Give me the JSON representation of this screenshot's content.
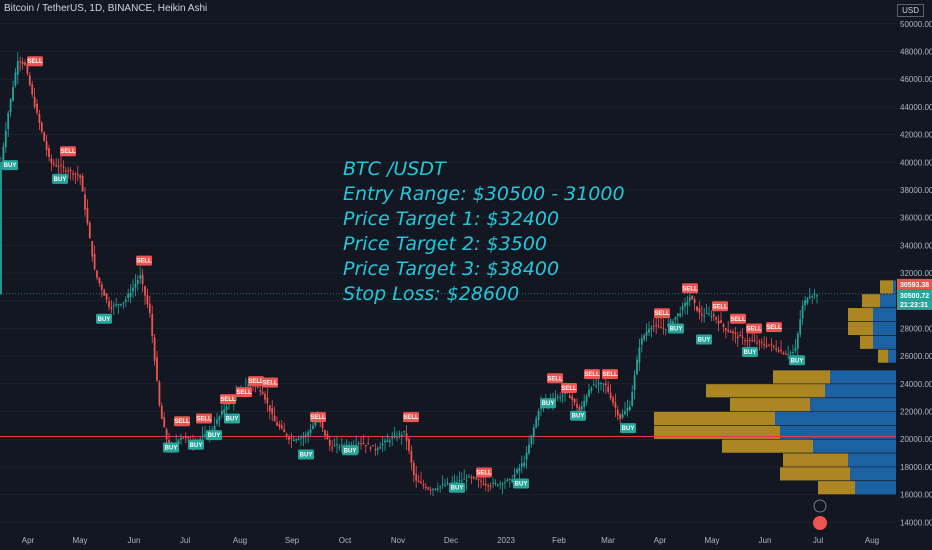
{
  "header": {
    "symbol_line": "Bitcoin / TetherUS, 1D, BINANCE, Heikin Ashi"
  },
  "currency": "USD",
  "colors": {
    "bg": "#131722",
    "up": "#26a69a",
    "down": "#ef5350",
    "note": "#26c6da",
    "vp_blue": "#1e6fb8",
    "vp_gold": "#c79a22",
    "hline": "#f23645",
    "buy": "#26a69a",
    "sell": "#ef5350"
  },
  "note": {
    "lines": [
      "BTC /USDT",
      "Entry Range: $30500 - 31000",
      "Price Target 1: $32400",
      "Price Target 2: $3500",
      "Price Target 3: $38400",
      "Stop Loss: $28600"
    ]
  },
  "price_tags": {
    "current": "30593.38",
    "last": "30500.72",
    "countdown": "21:23:31"
  },
  "chart_data": {
    "type": "candlestick",
    "title": "",
    "ylim": [
      13300,
      51000
    ],
    "y_ticks": [
      14000,
      16000,
      18000,
      20000,
      22000,
      24000,
      26000,
      28000,
      30000,
      32000,
      34000,
      36000,
      38000,
      40000,
      42000,
      44000,
      46000,
      48000,
      50000
    ],
    "y_tick_labels": [
      "14000.00",
      "16000.00",
      "18000.00",
      "20000.00",
      "22000.00",
      "24000.00",
      "26000.00",
      "28000.00",
      "30000.00",
      "32000.00",
      "34000.00",
      "36000.00",
      "38000.00",
      "40000.00",
      "42000.00",
      "44000.00",
      "46000.00",
      "48000.00",
      "50000.00"
    ],
    "x_labels": [
      "Apr",
      "May",
      "Jun",
      "Jul",
      "Aug",
      "Sep",
      "Oct",
      "Nov",
      "Dec",
      "2023",
      "Feb",
      "Mar",
      "Apr",
      "May",
      "Jun",
      "Jul",
      "Aug"
    ],
    "price_path": [
      [
        0,
        39500
      ],
      [
        8,
        43500
      ],
      [
        18,
        47500
      ],
      [
        25,
        47000
      ],
      [
        35,
        44000
      ],
      [
        50,
        40000
      ],
      [
        65,
        39500
      ],
      [
        80,
        39000
      ],
      [
        95,
        32000
      ],
      [
        110,
        29500
      ],
      [
        125,
        30000
      ],
      [
        140,
        31800
      ],
      [
        150,
        29000
      ],
      [
        160,
        22000
      ],
      [
        170,
        19000
      ],
      [
        180,
        20200
      ],
      [
        195,
        19800
      ],
      [
        210,
        20500
      ],
      [
        225,
        22300
      ],
      [
        240,
        23500
      ],
      [
        250,
        24000
      ],
      [
        262,
        23500
      ],
      [
        275,
        21200
      ],
      [
        290,
        20000
      ],
      [
        305,
        20200
      ],
      [
        318,
        21500
      ],
      [
        330,
        19500
      ],
      [
        345,
        19500
      ],
      [
        360,
        19800
      ],
      [
        375,
        19300
      ],
      [
        390,
        20000
      ],
      [
        405,
        20500
      ],
      [
        415,
        17000
      ],
      [
        430,
        16400
      ],
      [
        450,
        16800
      ],
      [
        470,
        17200
      ],
      [
        490,
        16700
      ],
      [
        510,
        17000
      ],
      [
        525,
        18500
      ],
      [
        540,
        22500
      ],
      [
        555,
        23000
      ],
      [
        568,
        23300
      ],
      [
        580,
        22000
      ],
      [
        590,
        23800
      ],
      [
        605,
        24000
      ],
      [
        620,
        21500
      ],
      [
        630,
        22500
      ],
      [
        640,
        27000
      ],
      [
        650,
        28200
      ],
      [
        665,
        28000
      ],
      [
        680,
        29200
      ],
      [
        690,
        30300
      ],
      [
        700,
        29000
      ],
      [
        712,
        29000
      ],
      [
        725,
        28000
      ],
      [
        740,
        27300
      ],
      [
        755,
        27000
      ],
      [
        770,
        26800
      ],
      [
        785,
        26200
      ],
      [
        795,
        26300
      ],
      [
        802,
        29500
      ],
      [
        808,
        30400
      ],
      [
        818,
        30500
      ]
    ],
    "volume_profile": [
      {
        "price": 28000,
        "left": 0,
        "right": 0
      },
      {
        "price": 24000,
        "gold": 0.22,
        "blue": 0.78
      },
      {
        "price": 22000,
        "gold": 0.3,
        "blue": 0.7
      },
      {
        "price": 20000,
        "gold": 0.45,
        "blue": 0.55
      },
      {
        "price": 18000,
        "gold": 0.5,
        "blue": 0.5
      }
    ],
    "vp_rows": [
      {
        "price": 31000,
        "left": 880,
        "gold": 893
      },
      {
        "price": 30000,
        "left": 862,
        "gold": 880
      },
      {
        "price": 29000,
        "left": 848,
        "gold": 873
      },
      {
        "price": 28000,
        "left": 848,
        "gold": 873
      },
      {
        "price": 27000,
        "left": 860,
        "gold": 873
      },
      {
        "price": 26000,
        "left": 878,
        "gold": 888
      },
      {
        "price": 24500,
        "left": 773,
        "gold": 830
      },
      {
        "price": 23500,
        "left": 706,
        "gold": 825
      },
      {
        "price": 22500,
        "left": 730,
        "gold": 810
      },
      {
        "price": 21500,
        "left": 654,
        "gold": 775
      },
      {
        "price": 20500,
        "left": 654,
        "gold": 780
      },
      {
        "price": 19500,
        "left": 722,
        "gold": 813
      },
      {
        "price": 18500,
        "left": 783,
        "gold": 848
      },
      {
        "price": 17500,
        "left": 780,
        "gold": 850
      },
      {
        "price": 16500,
        "left": 818,
        "gold": 855
      }
    ],
    "hlines": [
      20200
    ],
    "signals": [
      {
        "type": "SELL",
        "t": 35,
        "price": 47300
      },
      {
        "type": "BUY",
        "t": 10,
        "price": 39800
      },
      {
        "type": "SELL",
        "t": 68,
        "price": 40800
      },
      {
        "type": "BUY",
        "t": 60,
        "price": 38800
      },
      {
        "type": "SELL",
        "t": 144,
        "price": 32900
      },
      {
        "type": "BUY",
        "t": 104,
        "price": 28700
      },
      {
        "type": "SELL",
        "t": 182,
        "price": 21300
      },
      {
        "type": "BUY",
        "t": 171,
        "price": 19400
      },
      {
        "type": "SELL",
        "t": 204,
        "price": 21500
      },
      {
        "type": "BUY",
        "t": 196,
        "price": 19600
      },
      {
        "type": "SELL",
        "t": 228,
        "price": 22900
      },
      {
        "type": "BUY",
        "t": 214,
        "price": 20300
      },
      {
        "type": "SELL",
        "t": 244,
        "price": 23400
      },
      {
        "type": "BUY",
        "t": 232,
        "price": 21500
      },
      {
        "type": "SELL",
        "t": 256,
        "price": 24200
      },
      {
        "type": "SELL",
        "t": 270,
        "price": 24100
      },
      {
        "type": "SELL",
        "t": 318,
        "price": 21600
      },
      {
        "type": "BUY",
        "t": 306,
        "price": 18900
      },
      {
        "type": "SELL",
        "t": 411,
        "price": 21600
      },
      {
        "type": "BUY",
        "t": 350,
        "price": 19200
      },
      {
        "type": "SELL",
        "t": 484,
        "price": 17600
      },
      {
        "type": "BUY",
        "t": 457,
        "price": 16500
      },
      {
        "type": "BUY",
        "t": 521,
        "price": 16800
      },
      {
        "type": "SELL",
        "t": 555,
        "price": 24400
      },
      {
        "type": "SELL",
        "t": 569,
        "price": 23700
      },
      {
        "type": "BUY",
        "t": 548,
        "price": 22600
      },
      {
        "type": "BUY",
        "t": 578,
        "price": 21700
      },
      {
        "type": "SELL",
        "t": 592,
        "price": 24700
      },
      {
        "type": "SELL",
        "t": 610,
        "price": 24700
      },
      {
        "type": "BUY",
        "t": 628,
        "price": 20800
      },
      {
        "type": "SELL",
        "t": 662,
        "price": 29100
      },
      {
        "type": "SELL",
        "t": 690,
        "price": 30900
      },
      {
        "type": "BUY",
        "t": 676,
        "price": 28000
      },
      {
        "type": "SELL",
        "t": 720,
        "price": 29600
      },
      {
        "type": "BUY",
        "t": 704,
        "price": 27200
      },
      {
        "type": "SELL",
        "t": 738,
        "price": 28700
      },
      {
        "type": "SELL",
        "t": 754,
        "price": 28000
      },
      {
        "type": "SELL",
        "t": 774,
        "price": 28100
      },
      {
        "type": "BUY",
        "t": 750,
        "price": 26300
      },
      {
        "type": "BUY",
        "t": 797,
        "price": 25700
      }
    ]
  }
}
